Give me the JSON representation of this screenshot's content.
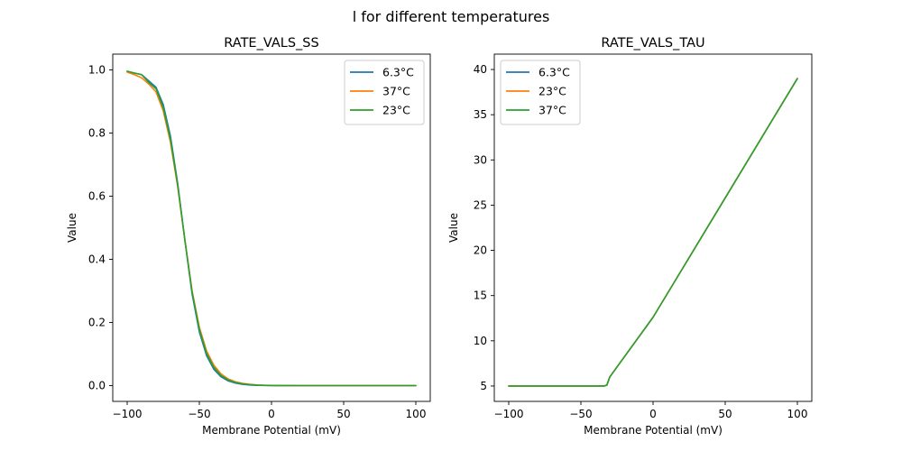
{
  "figure": {
    "suptitle": "l for different temperatures"
  },
  "chart_data": [
    {
      "type": "line",
      "title": "RATE_VALS_SS",
      "xlabel": "Membrane Potential (mV)",
      "ylabel": "Value",
      "xlim": [
        -110,
        110
      ],
      "ylim": [
        -0.05,
        1.05
      ],
      "xticks": [
        -100,
        -50,
        0,
        50,
        100
      ],
      "yticks": [
        0.0,
        0.2,
        0.4,
        0.6,
        0.8,
        1.0
      ],
      "xtick_labels": [
        "−100",
        "−50",
        "0",
        "50",
        "100"
      ],
      "ytick_labels": [
        "0.0",
        "0.2",
        "0.4",
        "0.6",
        "0.8",
        "1.0"
      ],
      "grid": false,
      "legend": "top-right",
      "x": [
        -100,
        -95,
        -90,
        -85,
        -80,
        -75,
        -70,
        -65,
        -60,
        -55,
        -50,
        -45,
        -40,
        -35,
        -30,
        -25,
        -20,
        -15,
        -10,
        -5,
        0,
        5,
        10,
        20,
        30,
        40,
        50,
        60,
        70,
        80,
        90,
        100
      ],
      "series": [
        {
          "name": "6.3°C",
          "color": "#1f77b4",
          "values": [
            0.995,
            0.99,
            0.985,
            0.965,
            0.945,
            0.89,
            0.79,
            0.64,
            0.46,
            0.29,
            0.17,
            0.095,
            0.052,
            0.028,
            0.015,
            0.008,
            0.004,
            0.002,
            0.001,
            0.0005,
            0.0002,
            0.0001,
            0,
            0,
            0,
            0,
            0,
            0,
            0,
            0,
            0,
            0
          ]
        },
        {
          "name": "37°C",
          "color": "#ff7f0e",
          "values": [
            0.993,
            0.985,
            0.975,
            0.955,
            0.93,
            0.87,
            0.77,
            0.63,
            0.46,
            0.3,
            0.185,
            0.11,
            0.065,
            0.037,
            0.021,
            0.012,
            0.007,
            0.004,
            0.002,
            0.001,
            0.0006,
            0.0003,
            0.0001,
            0,
            0,
            0,
            0,
            0,
            0,
            0,
            0,
            0
          ]
        },
        {
          "name": "23°C",
          "color": "#2ca02c",
          "values": [
            0.996,
            0.99,
            0.985,
            0.96,
            0.94,
            0.88,
            0.78,
            0.635,
            0.46,
            0.295,
            0.178,
            0.102,
            0.058,
            0.032,
            0.018,
            0.01,
            0.0055,
            0.003,
            0.0015,
            0.0008,
            0.0004,
            0.0002,
            0.0001,
            0,
            0,
            0,
            0,
            0,
            0,
            0,
            0,
            0
          ]
        }
      ]
    },
    {
      "type": "line",
      "title": "RATE_VALS_TAU",
      "xlabel": "Membrane Potential (mV)",
      "ylabel": "Value",
      "xlim": [
        -110,
        110
      ],
      "ylim": [
        3.3,
        41.7
      ],
      "xticks": [
        -100,
        -50,
        0,
        50,
        100
      ],
      "yticks": [
        5,
        10,
        15,
        20,
        25,
        30,
        35,
        40
      ],
      "xtick_labels": [
        "−100",
        "−50",
        "0",
        "50",
        "100"
      ],
      "ytick_labels": [
        "5",
        "10",
        "15",
        "20",
        "25",
        "30",
        "35",
        "40"
      ],
      "grid": false,
      "legend": "top-left",
      "x": [
        -100,
        -50,
        -34,
        -32,
        -30,
        0,
        50,
        100
      ],
      "series": [
        {
          "name": "6.3°C",
          "color": "#1f77b4",
          "values": [
            5,
            5,
            5,
            5.1,
            6.0,
            12.6,
            25.8,
            39.0
          ]
        },
        {
          "name": "23°C",
          "color": "#ff7f0e",
          "values": [
            5,
            5,
            5,
            5.1,
            6.0,
            12.6,
            25.8,
            39.0
          ]
        },
        {
          "name": "37°C",
          "color": "#2ca02c",
          "values": [
            5,
            5,
            5,
            5.1,
            6.0,
            12.6,
            25.8,
            39.0
          ]
        }
      ]
    }
  ]
}
